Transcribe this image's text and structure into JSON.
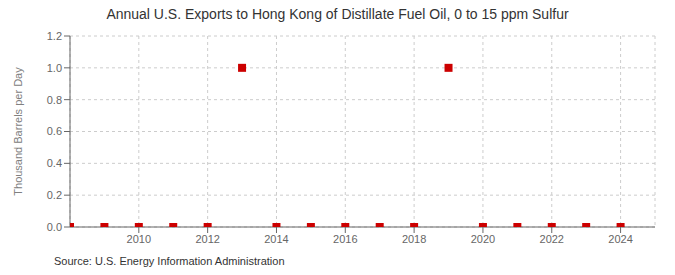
{
  "chart_data": {
    "type": "scatter",
    "title": "Annual U.S. Exports to Hong Kong of Distillate Fuel Oil, 0 to 15 ppm Sulfur",
    "ylabel": "Thousand Barrels per Day",
    "annotation": "Source: U.S. Energy Information Administration",
    "x": [
      2008,
      2009,
      2010,
      2011,
      2012,
      2013,
      2014,
      2015,
      2016,
      2017,
      2018,
      2019,
      2020,
      2021,
      2022,
      2023,
      2024
    ],
    "values": [
      0.0,
      0.0,
      0.0,
      0.0,
      0.0,
      1.0,
      0.0,
      0.0,
      0.0,
      0.0,
      0.0,
      1.0,
      0.0,
      0.0,
      0.0,
      0.0,
      0.0
    ],
    "color": "#cc0000",
    "marker": "square",
    "xlim": [
      2008.0,
      2025.0
    ],
    "xticks": [
      2010,
      2012,
      2014,
      2016,
      2018,
      2020,
      2022,
      2024
    ],
    "ylim": [
      0.0,
      1.2
    ],
    "yticks": [
      {
        "value": 0.0,
        "label": "0.0"
      },
      0.2,
      0.4,
      0.6,
      0.8,
      {
        "value": 1.0,
        "label": "1.0"
      },
      1.2
    ],
    "grid": true
  }
}
